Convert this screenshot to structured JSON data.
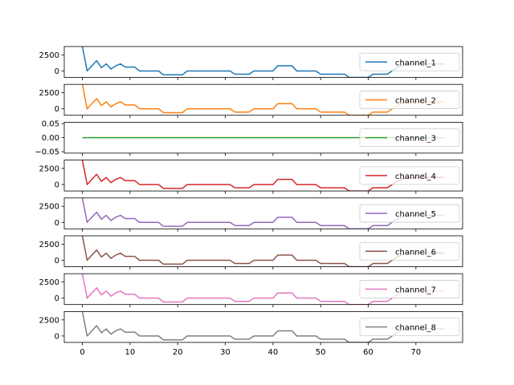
{
  "chart_data": {
    "type": "line",
    "x": [
      0,
      1,
      2,
      3,
      4,
      5,
      6,
      7,
      8,
      9,
      10,
      11,
      12,
      13,
      14,
      15,
      16,
      17,
      18,
      19,
      20,
      21,
      22,
      23,
      24,
      25,
      26,
      27,
      28,
      29,
      30,
      31,
      32,
      33,
      34,
      35,
      36,
      37,
      38,
      39,
      40,
      41,
      42,
      43,
      44,
      45,
      46,
      47,
      48,
      49,
      50,
      51,
      52,
      53,
      54,
      55,
      56,
      57,
      58,
      59,
      60,
      61,
      62,
      63,
      64,
      65,
      66,
      67,
      68,
      69,
      70,
      71,
      72,
      73,
      74,
      75,
      76
    ],
    "series": [
      {
        "name": "channel_1",
        "color": "#1f77b4",
        "ylim": [
          -1000,
          3800
        ],
        "yticks": [
          0,
          2500
        ],
        "ytick_labels": [
          "0",
          "2500"
        ],
        "values": [
          3800,
          0,
          800,
          1600,
          500,
          1100,
          300,
          800,
          1100,
          600,
          600,
          600,
          0,
          0,
          0,
          0,
          0,
          -600,
          -600,
          -600,
          -600,
          -600,
          0,
          0,
          0,
          0,
          0,
          0,
          0,
          0,
          0,
          0,
          -500,
          -500,
          -500,
          -500,
          0,
          0,
          0,
          0,
          0,
          800,
          800,
          800,
          800,
          0,
          0,
          0,
          0,
          0,
          -500,
          -500,
          -500,
          -500,
          -500,
          -500,
          -1000,
          -1000,
          -1000,
          -1000,
          -1000,
          -500,
          -500,
          -500,
          -500,
          0,
          500,
          800,
          1100,
          1100,
          1100,
          1100,
          1100,
          1100,
          1100,
          1100,
          1100
        ]
      },
      {
        "name": "channel_2",
        "color": "#ff7f0e",
        "ylim": [
          -1000,
          3800
        ],
        "yticks": [
          0,
          2500
        ],
        "ytick_labels": [
          "0",
          "2500"
        ],
        "values": [
          3800,
          0,
          800,
          1600,
          500,
          1100,
          300,
          800,
          1100,
          600,
          600,
          600,
          0,
          0,
          0,
          0,
          0,
          -600,
          -600,
          -600,
          -600,
          -600,
          0,
          0,
          0,
          0,
          0,
          0,
          0,
          0,
          0,
          0,
          -500,
          -500,
          -500,
          -500,
          0,
          0,
          0,
          0,
          0,
          800,
          800,
          800,
          800,
          0,
          0,
          0,
          0,
          0,
          -500,
          -500,
          -500,
          -500,
          -500,
          -500,
          -1000,
          -1000,
          -1000,
          -1000,
          -1000,
          -500,
          -500,
          -500,
          -500,
          0,
          500,
          800,
          1100,
          1100,
          1100,
          1100,
          1100,
          1100,
          1100,
          1100,
          1100
        ]
      },
      {
        "name": "channel_3",
        "color": "#2ca02c",
        "ylim": [
          -0.055,
          0.055
        ],
        "yticks": [
          -0.05,
          0.0,
          0.05
        ],
        "ytick_labels": [
          "−0.05",
          "0.00",
          "0.05"
        ],
        "values": [
          0,
          0,
          0,
          0,
          0,
          0,
          0,
          0,
          0,
          0,
          0,
          0,
          0,
          0,
          0,
          0,
          0,
          0,
          0,
          0,
          0,
          0,
          0,
          0,
          0,
          0,
          0,
          0,
          0,
          0,
          0,
          0,
          0,
          0,
          0,
          0,
          0,
          0,
          0,
          0,
          0,
          0,
          0,
          0,
          0,
          0,
          0,
          0,
          0,
          0,
          0,
          0,
          0,
          0,
          0,
          0,
          0,
          0,
          0,
          0,
          0,
          0,
          0,
          0,
          0,
          0,
          0,
          0,
          0,
          0,
          0,
          0,
          0,
          0,
          0,
          0,
          0
        ]
      },
      {
        "name": "channel_4",
        "color": "#d62728",
        "ylim": [
          -1000,
          3800
        ],
        "yticks": [
          0,
          2500
        ],
        "ytick_labels": [
          "0",
          "2500"
        ],
        "values": [
          3800,
          0,
          800,
          1600,
          500,
          1100,
          300,
          800,
          1100,
          600,
          600,
          600,
          0,
          0,
          0,
          0,
          0,
          -600,
          -600,
          -600,
          -600,
          -600,
          0,
          0,
          0,
          0,
          0,
          0,
          0,
          0,
          0,
          0,
          -500,
          -500,
          -500,
          -500,
          0,
          0,
          0,
          0,
          0,
          800,
          800,
          800,
          800,
          0,
          0,
          0,
          0,
          0,
          -500,
          -500,
          -500,
          -500,
          -500,
          -500,
          -1000,
          -1000,
          -1000,
          -1000,
          -1000,
          -500,
          -500,
          -500,
          -500,
          0,
          500,
          800,
          1100,
          1100,
          1100,
          1100,
          1100,
          1100,
          1100,
          1100,
          1100
        ]
      },
      {
        "name": "channel_5",
        "color": "#9467bd",
        "ylim": [
          -1000,
          3800
        ],
        "yticks": [
          0,
          2500
        ],
        "ytick_labels": [
          "0",
          "2500"
        ],
        "values": [
          3800,
          0,
          800,
          1600,
          500,
          1100,
          300,
          800,
          1100,
          600,
          600,
          600,
          0,
          0,
          0,
          0,
          0,
          -600,
          -600,
          -600,
          -600,
          -600,
          0,
          0,
          0,
          0,
          0,
          0,
          0,
          0,
          0,
          0,
          -500,
          -500,
          -500,
          -500,
          0,
          0,
          0,
          0,
          0,
          800,
          800,
          800,
          800,
          0,
          0,
          0,
          0,
          0,
          -500,
          -500,
          -500,
          -500,
          -500,
          -500,
          -1000,
          -1000,
          -1000,
          -1000,
          -1000,
          -500,
          -500,
          -500,
          -500,
          0,
          500,
          800,
          1100,
          1100,
          1100,
          1100,
          1100,
          1100,
          1100,
          1100,
          1100
        ]
      },
      {
        "name": "channel_6",
        "color": "#8c564b",
        "ylim": [
          -1000,
          3800
        ],
        "yticks": [
          0,
          2500
        ],
        "ytick_labels": [
          "0",
          "2500"
        ],
        "values": [
          3800,
          0,
          800,
          1600,
          500,
          1100,
          300,
          800,
          1100,
          600,
          600,
          600,
          0,
          0,
          0,
          0,
          0,
          -600,
          -600,
          -600,
          -600,
          -600,
          0,
          0,
          0,
          0,
          0,
          0,
          0,
          0,
          0,
          0,
          -500,
          -500,
          -500,
          -500,
          0,
          0,
          0,
          0,
          0,
          800,
          800,
          800,
          800,
          0,
          0,
          0,
          0,
          0,
          -500,
          -500,
          -500,
          -500,
          -500,
          -500,
          -1000,
          -1000,
          -1000,
          -1000,
          -1000,
          -500,
          -500,
          -500,
          -500,
          0,
          500,
          800,
          1100,
          1100,
          1100,
          1100,
          1100,
          1100,
          1100,
          1100,
          1100
        ]
      },
      {
        "name": "channel_7",
        "color": "#e377c2",
        "ylim": [
          -1000,
          3800
        ],
        "yticks": [
          0,
          2500
        ],
        "ytick_labels": [
          "0",
          "2500"
        ],
        "values": [
          3800,
          0,
          800,
          1600,
          500,
          1100,
          300,
          800,
          1100,
          600,
          600,
          600,
          0,
          0,
          0,
          0,
          0,
          -600,
          -600,
          -600,
          -600,
          -600,
          0,
          0,
          0,
          0,
          0,
          0,
          0,
          0,
          0,
          0,
          -500,
          -500,
          -500,
          -500,
          0,
          0,
          0,
          0,
          0,
          800,
          800,
          800,
          800,
          0,
          0,
          0,
          0,
          0,
          -500,
          -500,
          -500,
          -500,
          -500,
          -500,
          -1000,
          -1000,
          -1000,
          -1000,
          -1000,
          -500,
          -500,
          -500,
          -500,
          0,
          500,
          800,
          1100,
          1100,
          1100,
          1100,
          1100,
          1100,
          1100,
          1100,
          1100
        ]
      },
      {
        "name": "channel_8",
        "color": "#7f7f7f",
        "ylim": [
          -1000,
          3800
        ],
        "yticks": [
          0,
          2500
        ],
        "ytick_labels": [
          "0",
          "2500"
        ],
        "values": [
          3800,
          0,
          800,
          1600,
          500,
          1100,
          300,
          800,
          1100,
          600,
          600,
          600,
          0,
          0,
          0,
          0,
          0,
          -600,
          -600,
          -600,
          -600,
          -600,
          0,
          0,
          0,
          0,
          0,
          0,
          0,
          0,
          0,
          0,
          -500,
          -500,
          -500,
          -500,
          0,
          0,
          0,
          0,
          0,
          800,
          800,
          800,
          800,
          0,
          0,
          0,
          0,
          0,
          -500,
          -500,
          -500,
          -500,
          -500,
          -500,
          -1000,
          -1000,
          -1000,
          -1000,
          -1000,
          -500,
          -500,
          -500,
          -500,
          0,
          500,
          800,
          1100,
          1100,
          1100,
          1100,
          1100,
          1100,
          1100,
          1100,
          1100
        ]
      }
    ],
    "xlim": [
      -3.8,
      79.8
    ],
    "xticks": [
      0,
      10,
      20,
      30,
      40,
      50,
      60,
      70
    ],
    "xtick_labels": [
      "0",
      "10",
      "20",
      "30",
      "40",
      "50",
      "60",
      "70"
    ],
    "legend_loc": "right",
    "grid": false
  }
}
